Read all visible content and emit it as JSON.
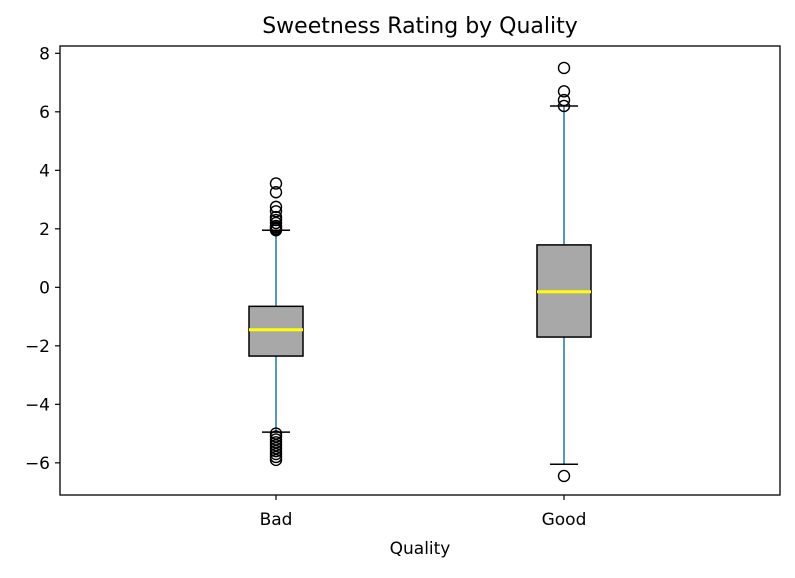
{
  "chart_data": {
    "type": "box",
    "title": "Sweetness Rating by Quality",
    "xlabel": "Quality",
    "ylabel": "",
    "ylim": [
      -7.1,
      8.25
    ],
    "yticks": [
      -6,
      -4,
      -2,
      0,
      2,
      4,
      6,
      8
    ],
    "ytick_labels": [
      "−6",
      "−4",
      "−2",
      "0",
      "2",
      "4",
      "6",
      "8"
    ],
    "categories": [
      "Bad",
      "Good"
    ],
    "series": [
      {
        "category": "Bad",
        "whisker_low": -4.95,
        "q1": -2.35,
        "median": -1.45,
        "q3": -0.65,
        "whisker_high": 1.95,
        "outliers": [
          -5.9,
          -5.8,
          -5.7,
          -5.6,
          -5.5,
          -5.4,
          -5.3,
          -5.2,
          -5.1,
          -5.0,
          1.95,
          2.0,
          2.05,
          2.1,
          2.2,
          2.3,
          2.4,
          2.6,
          2.75,
          3.25,
          3.55
        ]
      },
      {
        "category": "Good",
        "whisker_low": -6.05,
        "q1": -1.7,
        "median": -0.15,
        "q3": 1.45,
        "whisker_high": 6.2,
        "outliers": [
          -6.45,
          6.2,
          6.4,
          6.7,
          7.5
        ]
      }
    ],
    "box_fill": "#a8a8a8",
    "box_edge": "#000000",
    "median_color": "#ffff00",
    "whisker_color": "#1f77a0",
    "cap_color": "#000000",
    "outlier_edge": "#000000",
    "grid": false,
    "legend": "none"
  }
}
